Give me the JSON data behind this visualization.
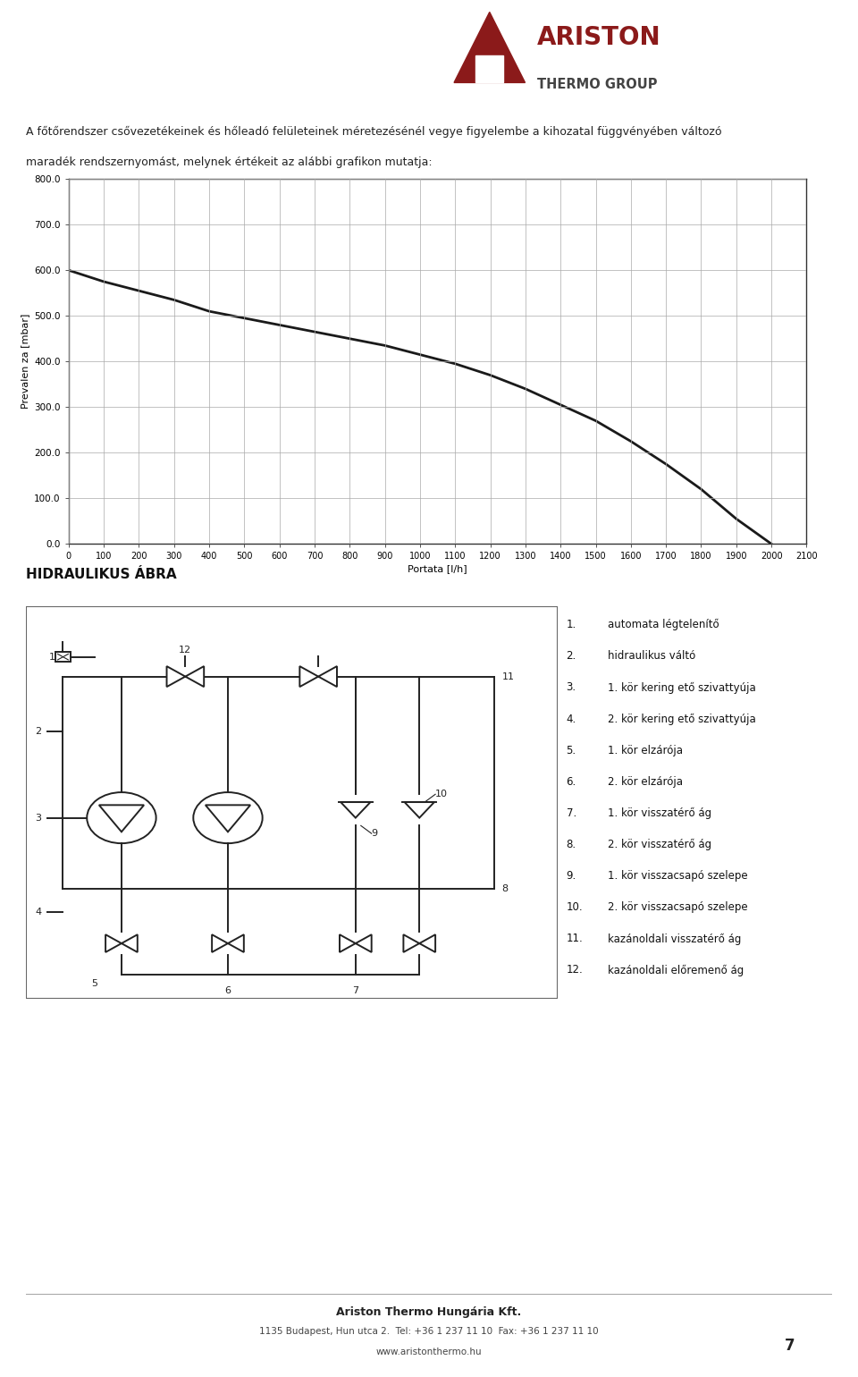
{
  "title_text": "A főtőrendszer csővezetékeinek és hőleadó felületeinek méretezésénél vegye figyelembe a kihozatal függvényében változó\nmaradék rendszernyomást, melynek értékeit az alábbi grafikon mutatja:",
  "ylabel": "Prevalen za [mbar]",
  "xlabel": "Portata [l/h]",
  "x_ticks": [
    0,
    100,
    200,
    300,
    400,
    500,
    600,
    700,
    800,
    900,
    1000,
    1100,
    1200,
    1300,
    1400,
    1500,
    1600,
    1700,
    1800,
    1900,
    2000,
    2100
  ],
  "y_ticks": [
    0.0,
    100.0,
    200.0,
    300.0,
    400.0,
    500.0,
    600.0,
    700.0,
    800.0
  ],
  "ylim": [
    0,
    800
  ],
  "xlim": [
    0,
    2100
  ],
  "curve_x": [
    0,
    100,
    200,
    300,
    400,
    500,
    600,
    700,
    800,
    900,
    1000,
    1100,
    1200,
    1300,
    1400,
    1500,
    1600,
    1700,
    1800,
    1900,
    2000
  ],
  "curve_y": [
    600,
    575,
    555,
    535,
    510,
    495,
    480,
    465,
    450,
    435,
    415,
    395,
    370,
    340,
    305,
    270,
    225,
    175,
    120,
    55,
    0
  ],
  "section_title": "HIDRAULIKUS ÁBRA",
  "legend_items": [
    [
      "1.",
      "automata légtelenítő"
    ],
    [
      "2.",
      "hidraulikus váltó"
    ],
    [
      "3.",
      "1. kör kering ető szivattyúja"
    ],
    [
      "4.",
      "2. kör kering ető szivattyúja"
    ],
    [
      "5.",
      "1. kör elzárója"
    ],
    [
      "6.",
      "2. kör elzárója"
    ],
    [
      "7.",
      "1. kör visszatérő ág"
    ],
    [
      "8.",
      "2. kör visszatérő ág"
    ],
    [
      "9.",
      "1. kör visszacsapó szelepe"
    ],
    [
      "10.",
      "2. kör visszacsapó szelepe"
    ],
    [
      "11.",
      "kazánoldali visszatérő ág"
    ],
    [
      "12.",
      "kazánoldali előremenő ág"
    ]
  ],
  "footer_company": "Ariston Thermo Hungária Kft.",
  "footer_address": "1135 Budapest, Hun utca 2.  Tel: +36 1 237 11 10  Fax: +36 1 237 11 10",
  "footer_web": "www.aristonthermo.hu",
  "page_number": "7",
  "bg_color": "#ffffff",
  "line_color": "#1a1a1a",
  "grid_color": "#aaaaaa",
  "border_color": "#333333",
  "ariston_red": "#8B1A1A"
}
